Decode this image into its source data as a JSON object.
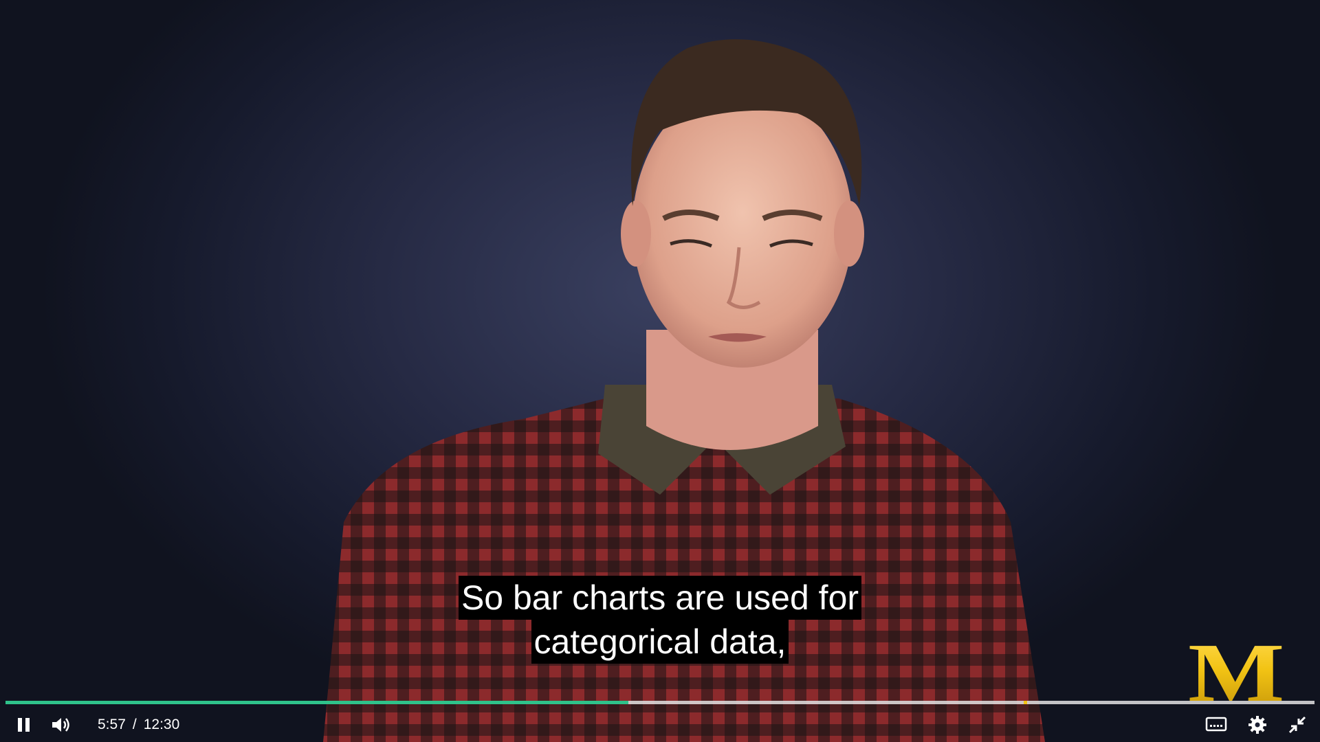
{
  "player": {
    "subtitle_lines": [
      "So bar charts are used for",
      "categorical data,"
    ],
    "logo_text": "M",
    "time": {
      "current": "5:57",
      "separator": "/",
      "duration": "12:30"
    },
    "progress_fraction": 0.476,
    "marker_fraction": 0.778,
    "colors": {
      "progress": "#2fc28a",
      "marker": "#f2c314",
      "logo": "#f2c314",
      "background": "#262a44"
    },
    "icons": {
      "pause": "pause-icon",
      "volume": "volume-icon",
      "captions": "captions-icon",
      "settings": "gear-icon",
      "exit_fullscreen": "exit-fullscreen-icon"
    }
  }
}
